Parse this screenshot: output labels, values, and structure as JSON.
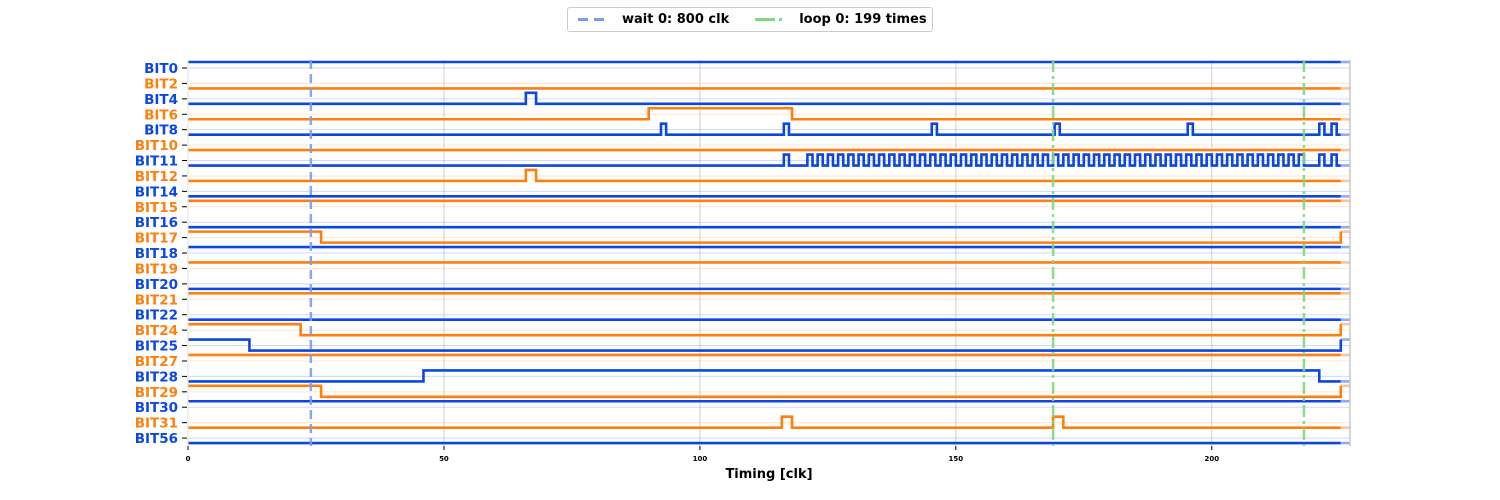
{
  "chart_data": {
    "type": "line",
    "subtype": "digital-timing-diagram",
    "xlabel": "Timing [clk]",
    "xlim": [
      0,
      227
    ],
    "xticks": [
      0,
      50,
      100,
      150,
      200
    ],
    "grid": true,
    "legend_placement": "top-center",
    "legend": [
      {
        "label": "wait 0: 800 clk",
        "color": "#7b9cf0",
        "style": "dashed"
      },
      {
        "label": "loop 0: 199 times",
        "color": "#80d880",
        "style": "dash-dot"
      }
    ],
    "markers": [
      {
        "kind": "wait",
        "x": 24
      },
      {
        "kind": "loop",
        "x": 169
      },
      {
        "kind": "loop",
        "x": 218
      }
    ],
    "signal_end": 225.2,
    "colors": {
      "even": "#0b47e0",
      "odd": "#ff7f0e"
    },
    "series": [
      {
        "name": "BIT0",
        "initial": 1,
        "toggles": []
      },
      {
        "name": "BIT2",
        "initial": 0,
        "toggles": []
      },
      {
        "name": "BIT4",
        "initial": 0,
        "toggles": [
          66,
          68
        ]
      },
      {
        "name": "BIT6",
        "initial": 0,
        "toggles": [
          90,
          118
        ]
      },
      {
        "name": "BIT8",
        "initial": 0,
        "toggles": [
          92.4,
          93.4,
          116.4,
          117.4,
          145.3,
          146.3,
          169.3,
          170.3,
          195.3,
          196.3,
          221,
          222,
          223.4,
          224.4
        ]
      },
      {
        "name": "BIT10",
        "initial": 0,
        "toggles": []
      },
      {
        "name": "BIT11",
        "initial": 0,
        "toggles": [
          116.4,
          117.4,
          121,
          122,
          123,
          124,
          125,
          126,
          127,
          128,
          129,
          130,
          131,
          132,
          133,
          134,
          135,
          136,
          137,
          138,
          139,
          140,
          141,
          142,
          143,
          144,
          145,
          146,
          147,
          148,
          149,
          150,
          151,
          152,
          153,
          154,
          155,
          156,
          157,
          158,
          159,
          160,
          161,
          162,
          163,
          164,
          165,
          166,
          167,
          168,
          169,
          170,
          171,
          172,
          173,
          174,
          175,
          176,
          177,
          178,
          179,
          180,
          181,
          182,
          183,
          184,
          185,
          186,
          187,
          188,
          189,
          190,
          191,
          192,
          193,
          194,
          195,
          196,
          197,
          198,
          199,
          200,
          201,
          202,
          203,
          204,
          205,
          206,
          207,
          208,
          209,
          210,
          211,
          212,
          213,
          214,
          215,
          216,
          217,
          218,
          221,
          222,
          223.4,
          224.4
        ]
      },
      {
        "name": "BIT12",
        "initial": 0,
        "toggles": [
          66,
          68
        ]
      },
      {
        "name": "BIT14",
        "initial": 0,
        "toggles": []
      },
      {
        "name": "BIT15",
        "initial": 1,
        "toggles": []
      },
      {
        "name": "BIT16",
        "initial": 0,
        "toggles": []
      },
      {
        "name": "BIT17",
        "initial": 1,
        "toggles": [
          26,
          225.2
        ]
      },
      {
        "name": "BIT18",
        "initial": 1,
        "toggles": []
      },
      {
        "name": "BIT19",
        "initial": 1,
        "toggles": []
      },
      {
        "name": "BIT20",
        "initial": 0,
        "toggles": []
      },
      {
        "name": "BIT21",
        "initial": 1,
        "toggles": []
      },
      {
        "name": "BIT22",
        "initial": 0,
        "toggles": []
      },
      {
        "name": "BIT24",
        "initial": 1,
        "toggles": [
          22,
          225.2
        ]
      },
      {
        "name": "BIT25",
        "initial": 1,
        "toggles": [
          12,
          225.2
        ]
      },
      {
        "name": "BIT27",
        "initial": 1,
        "toggles": []
      },
      {
        "name": "BIT28",
        "initial": 0,
        "toggles": [
          46,
          221
        ]
      },
      {
        "name": "BIT29",
        "initial": 1,
        "toggles": [
          26,
          225.2
        ]
      },
      {
        "name": "BIT30",
        "initial": 1,
        "toggles": []
      },
      {
        "name": "BIT31",
        "initial": 0,
        "toggles": [
          116,
          118,
          169,
          171
        ]
      },
      {
        "name": "BIT56",
        "initial": 0,
        "toggles": []
      }
    ]
  }
}
